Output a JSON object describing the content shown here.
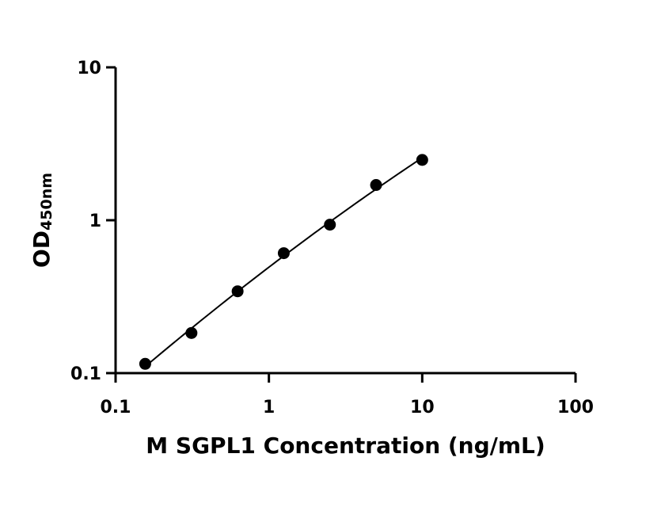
{
  "chart_data": {
    "type": "scatter",
    "xlabel": "M SGPL1 Concentration (ng/mL)",
    "ylabel": {
      "main": "OD",
      "subscript": "450nm"
    },
    "x_scale": "log",
    "y_scale": "log",
    "xlim": [
      0.1,
      100
    ],
    "ylim": [
      0.1,
      10
    ],
    "x_ticks": [
      {
        "value": 0.1,
        "label": "0.1"
      },
      {
        "value": 1,
        "label": "1"
      },
      {
        "value": 10,
        "label": "10"
      },
      {
        "value": 100,
        "label": "100"
      }
    ],
    "y_ticks": [
      {
        "value": 0.1,
        "label": "0.1"
      },
      {
        "value": 1,
        "label": "1"
      },
      {
        "value": 10,
        "label": "10"
      }
    ],
    "grid": false,
    "fit_curve": true,
    "series": [
      {
        "x": [
          0.156,
          0.3125,
          0.625,
          1.25,
          2.5,
          5,
          10
        ],
        "y": [
          0.115,
          0.183,
          0.343,
          0.609,
          0.935,
          1.7,
          2.48
        ]
      }
    ]
  }
}
